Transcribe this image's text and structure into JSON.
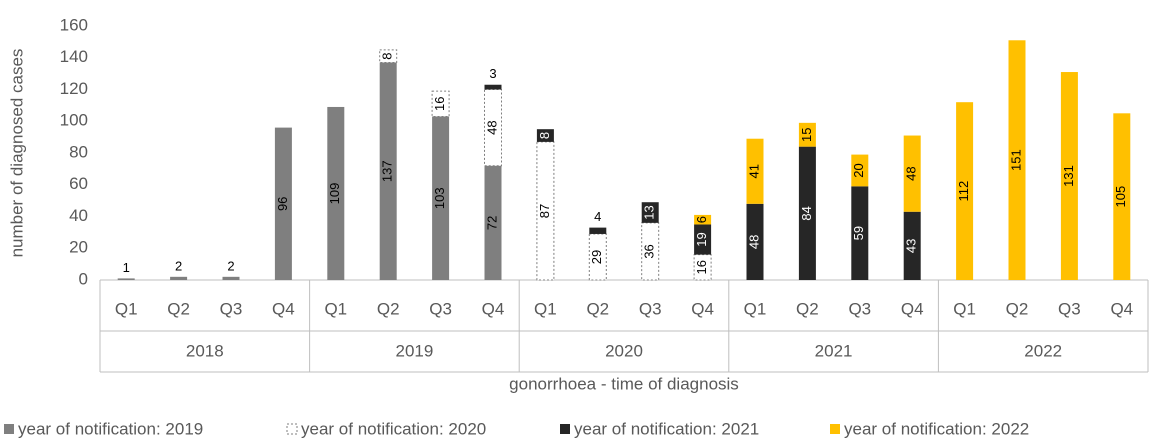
{
  "chart_data": {
    "type": "stacked-bar",
    "y_label": "number of diagnosed cases",
    "x_label": "gonorrhoea - time of diagnosis",
    "categories": [
      "Q1",
      "Q2",
      "Q3",
      "Q4",
      "Q1",
      "Q2",
      "Q3",
      "Q4",
      "Q1",
      "Q2",
      "Q3",
      "Q4",
      "Q1",
      "Q2",
      "Q3",
      "Q4",
      "Q1",
      "Q2",
      "Q3",
      "Q4"
    ],
    "groups": [
      "2018",
      "2019",
      "2020",
      "2021",
      "2022"
    ],
    "series": [
      {
        "name": "year of notification: 2019",
        "color": "#7f7f7f",
        "values": [
          1,
          2,
          2,
          96,
          109,
          137,
          103,
          72,
          null,
          null,
          null,
          null,
          null,
          null,
          null,
          null,
          null,
          null,
          null,
          null
        ]
      },
      {
        "name": "year of notification: 2020",
        "color": "#ffffff",
        "values": [
          null,
          null,
          null,
          null,
          null,
          8,
          16,
          48,
          87,
          29,
          36,
          16,
          null,
          null,
          null,
          null,
          null,
          null,
          null,
          null
        ]
      },
      {
        "name": "year of notification: 2021",
        "color": "#262626",
        "values": [
          null,
          null,
          null,
          null,
          null,
          null,
          null,
          3,
          8,
          4,
          13,
          19,
          48,
          84,
          59,
          43,
          null,
          null,
          null,
          null
        ]
      },
      {
        "name": "year of notification: 2022",
        "color": "#ffc000",
        "values": [
          null,
          null,
          null,
          null,
          null,
          null,
          null,
          null,
          null,
          null,
          null,
          6,
          41,
          15,
          20,
          48,
          112,
          151,
          131,
          105
        ]
      }
    ],
    "ylim": [
      0,
      160
    ],
    "yticks": [
      0,
      20,
      40,
      60,
      80,
      100,
      120,
      140,
      160
    ],
    "grid": false
  }
}
